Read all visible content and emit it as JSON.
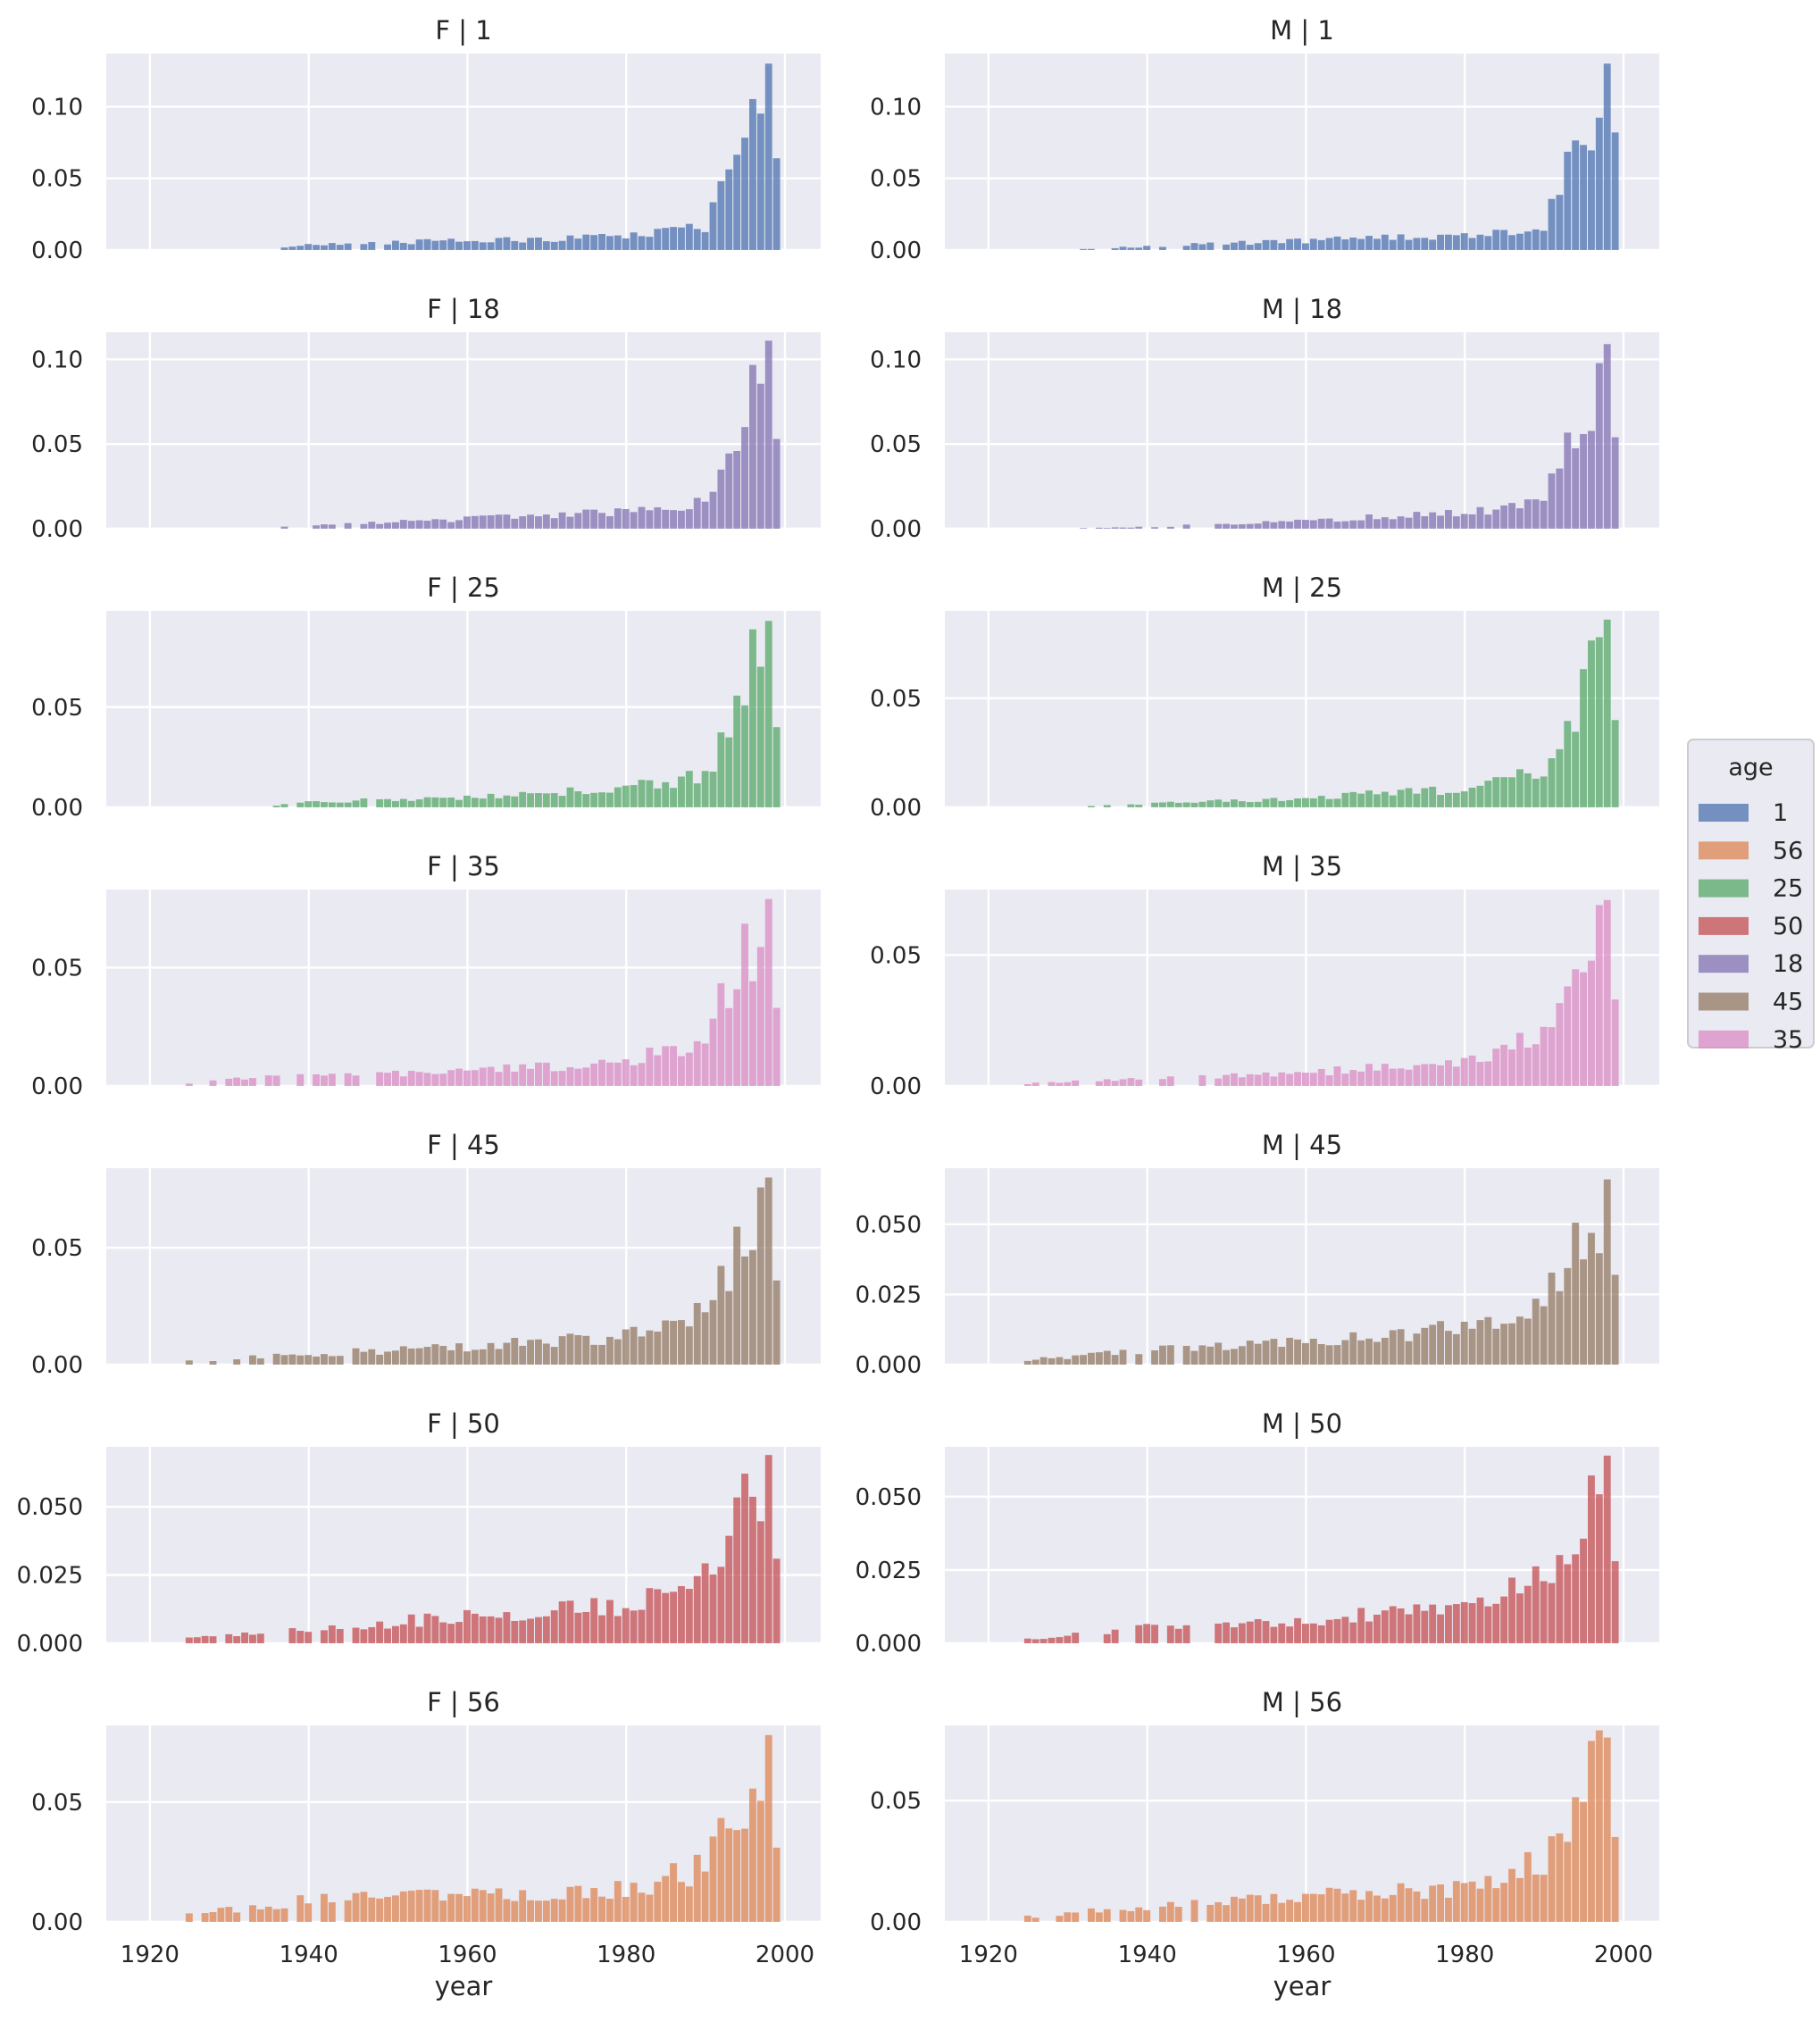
{
  "chart_data": {
    "type": "bar",
    "subtype": "facet-grid-histogram",
    "x": [
      1919,
      1920,
      1921,
      1922,
      1923,
      1924,
      1925,
      1926,
      1927,
      1928,
      1929,
      1930,
      1931,
      1932,
      1933,
      1934,
      1935,
      1936,
      1937,
      1938,
      1939,
      1940,
      1941,
      1942,
      1943,
      1944,
      1945,
      1946,
      1947,
      1948,
      1949,
      1950,
      1951,
      1952,
      1953,
      1954,
      1955,
      1956,
      1957,
      1958,
      1959,
      1960,
      1961,
      1962,
      1963,
      1964,
      1965,
      1966,
      1967,
      1968,
      1969,
      1970,
      1971,
      1972,
      1973,
      1974,
      1975,
      1976,
      1977,
      1978,
      1979,
      1980,
      1981,
      1982,
      1983,
      1984,
      1985,
      1986,
      1987,
      1988,
      1989,
      1990,
      1991,
      1992,
      1993,
      1994,
      1995,
      1996,
      1997,
      1998,
      1999,
      2000
    ],
    "xlabel": "year",
    "xlim": [
      1914.5,
      2004.5
    ],
    "xticks": [
      1920,
      1940,
      1960,
      1980,
      2000
    ],
    "grid": true,
    "legend": {
      "title": "age",
      "position": "right-center",
      "entries": [
        {
          "label": "1",
          "color": "#4c72b0"
        },
        {
          "label": "56",
          "color": "#dd8452"
        },
        {
          "label": "25",
          "color": "#55a868"
        },
        {
          "label": "50",
          "color": "#c44e52"
        },
        {
          "label": "18",
          "color": "#8172b3"
        },
        {
          "label": "45",
          "color": "#937860"
        },
        {
          "label": "35",
          "color": "#da8bc3"
        }
      ]
    },
    "panels": [
      {
        "title": "F | 1",
        "row": 0,
        "col": 0,
        "color": "#4c72b0",
        "ylim": [
          0,
          0.137
        ],
        "yticks": [
          "0.00",
          "0.05",
          "0.10"
        ],
        "ytick_values": [
          0,
          0.05,
          0.1
        ],
        "shape": [
          0.03,
          0.05,
          0.07,
          0.12
        ],
        "peak": 0.13,
        "last": 0.064
      },
      {
        "title": "M | 1",
        "row": 0,
        "col": 1,
        "color": "#4c72b0",
        "ylim": [
          0,
          0.137
        ],
        "yticks": [
          "0.00",
          "0.05",
          "0.10"
        ],
        "ytick_values": [
          0,
          0.05,
          0.1
        ],
        "shape": [
          0.02,
          0.05,
          0.08,
          0.11
        ],
        "peak": 0.13,
        "last": 0.082
      },
      {
        "title": "F | 18",
        "row": 1,
        "col": 0,
        "color": "#8172b3",
        "ylim": [
          0,
          0.116
        ],
        "yticks": [
          "0.00",
          "0.05",
          "0.10"
        ],
        "ytick_values": [
          0,
          0.05,
          0.1
        ],
        "shape": [
          0.02,
          0.05,
          0.09,
          0.15
        ],
        "peak": 0.111,
        "last": 0.053
      },
      {
        "title": "M | 18",
        "row": 1,
        "col": 1,
        "color": "#8172b3",
        "ylim": [
          0,
          0.116
        ],
        "yticks": [
          "0.00",
          "0.05",
          "0.10"
        ],
        "ytick_values": [
          0,
          0.05,
          0.1
        ],
        "shape": [
          0.01,
          0.04,
          0.09,
          0.15
        ],
        "peak": 0.109,
        "last": 0.054
      },
      {
        "title": "F | 25",
        "row": 2,
        "col": 0,
        "color": "#55a868",
        "ylim": [
          0,
          0.098
        ],
        "yticks": [
          "0.00",
          "0.05"
        ],
        "ytick_values": [
          0,
          0.05
        ],
        "shape": [
          0.03,
          0.05,
          0.1,
          0.18
        ],
        "peak": 0.093,
        "last": 0.04
      },
      {
        "title": "M | 25",
        "row": 2,
        "col": 1,
        "color": "#55a868",
        "ylim": [
          0,
          0.09
        ],
        "yticks": [
          "0.00",
          "0.05"
        ],
        "ytick_values": [
          0,
          0.05
        ],
        "shape": [
          0.02,
          0.05,
          0.1,
          0.19
        ],
        "peak": 0.086,
        "last": 0.04
      },
      {
        "title": "F | 35",
        "row": 3,
        "col": 0,
        "color": "#da8bc3",
        "ylim": [
          0,
          0.083
        ],
        "yticks": [
          "0.00",
          "0.05"
        ],
        "ytick_values": [
          0,
          0.05
        ],
        "shape": [
          0.06,
          0.08,
          0.13,
          0.27
        ],
        "peak": 0.079,
        "last": 0.033
      },
      {
        "title": "M | 35",
        "row": 3,
        "col": 1,
        "color": "#da8bc3",
        "ylim": [
          0,
          0.075
        ],
        "yticks": [
          "0.00",
          "0.05"
        ],
        "ytick_values": [
          0,
          0.05
        ],
        "shape": [
          0.04,
          0.07,
          0.13,
          0.26
        ],
        "peak": 0.071,
        "last": 0.033
      },
      {
        "title": "F | 45",
        "row": 4,
        "col": 0,
        "color": "#937860",
        "ylim": [
          0,
          0.084
        ],
        "yticks": [
          "0.00",
          "0.05"
        ],
        "ytick_values": [
          0,
          0.05
        ],
        "shape": [
          0.06,
          0.09,
          0.16,
          0.3
        ],
        "peak": 0.08,
        "last": 0.036
      },
      {
        "title": "M | 45",
        "row": 4,
        "col": 1,
        "color": "#937860",
        "ylim": [
          0,
          0.07
        ],
        "yticks": [
          "0.000",
          "0.025",
          "0.050"
        ],
        "ytick_values": [
          0,
          0.025,
          0.05
        ],
        "shape": [
          0.08,
          0.12,
          0.2,
          0.33
        ],
        "peak": 0.066,
        "last": 0.032
      },
      {
        "title": "F | 50",
        "row": 5,
        "col": 0,
        "color": "#c44e52",
        "ylim": [
          0,
          0.072
        ],
        "yticks": [
          "0.000",
          "0.025",
          "0.050"
        ],
        "ytick_values": [
          0,
          0.025,
          0.05
        ],
        "shape": [
          0.08,
          0.14,
          0.2,
          0.33
        ],
        "peak": 0.069,
        "last": 0.031
      },
      {
        "title": "M | 50",
        "row": 5,
        "col": 1,
        "color": "#c44e52",
        "ylim": [
          0,
          0.067
        ],
        "yticks": [
          "0.000",
          "0.025",
          "0.050"
        ],
        "ytick_values": [
          0,
          0.025,
          0.05
        ],
        "shape": [
          0.08,
          0.13,
          0.19,
          0.36
        ],
        "peak": 0.064,
        "last": 0.028
      },
      {
        "title": "F | 56",
        "row": 6,
        "col": 0,
        "color": "#dd8452",
        "ylim": [
          0,
          0.082
        ],
        "yticks": [
          "0.00",
          "0.05"
        ],
        "ytick_values": [
          0,
          0.05
        ],
        "shape": [
          0.12,
          0.14,
          0.17,
          0.29
        ],
        "peak": 0.078,
        "last": 0.031
      },
      {
        "title": "M | 56",
        "row": 6,
        "col": 1,
        "color": "#dd8452",
        "ylim": [
          0,
          0.081
        ],
        "yticks": [
          "0.00",
          "0.05"
        ],
        "ytick_values": [
          0,
          0.05
        ],
        "shape": [
          0.09,
          0.14,
          0.18,
          0.32
        ],
        "peak": 0.076,
        "last": 0.035
      }
    ]
  }
}
